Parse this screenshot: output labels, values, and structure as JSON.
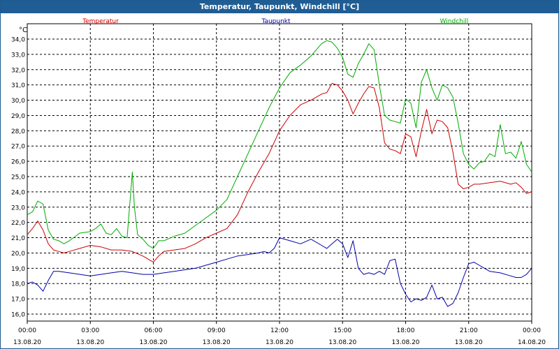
{
  "window": {
    "title": "Temperatur, Taupunkt, Windchill [°C]"
  },
  "colors": {
    "titlebar": "#1f5d94",
    "grid": "#000000"
  },
  "chart_data": {
    "type": "line",
    "title": "Temperatur, Taupunkt, Windchill [°C]",
    "ylabel": "°C",
    "xlabel": "",
    "ylim": [
      16.0,
      34.0
    ],
    "grid": true,
    "legend_position": "top",
    "y_ticks": [
      16.0,
      17.0,
      18.0,
      19.0,
      20.0,
      21.0,
      22.0,
      23.0,
      24.0,
      25.0,
      26.0,
      27.0,
      28.0,
      29.0,
      30.0,
      31.0,
      32.0,
      33.0,
      34.0
    ],
    "y_tick_labels": [
      "16,0",
      "17,0",
      "18,0",
      "19,0",
      "20,0",
      "21,0",
      "22,0",
      "23,0",
      "24,0",
      "25,0",
      "26,0",
      "27,0",
      "28,0",
      "29,0",
      "30,0",
      "31,0",
      "32,0",
      "33,0",
      "34,0"
    ],
    "x_ticks": [
      {
        "time": "00:00",
        "date": "13.08.20",
        "hour": 0
      },
      {
        "time": "03:00",
        "date": "13.08.20",
        "hour": 3
      },
      {
        "time": "06:00",
        "date": "13.08.20",
        "hour": 6
      },
      {
        "time": "09:00",
        "date": "13.08.20",
        "hour": 9
      },
      {
        "time": "12:00",
        "date": "13.08.20",
        "hour": 12
      },
      {
        "time": "15:00",
        "date": "13.08.20",
        "hour": 15
      },
      {
        "time": "18:00",
        "date": "13.08.20",
        "hour": 18
      },
      {
        "time": "21:00",
        "date": "13.08.20",
        "hour": 21
      },
      {
        "time": "00:00",
        "date": "14.08.20",
        "hour": 24
      }
    ],
    "series": [
      {
        "name": "Temperatur",
        "color": "#cc0000",
        "x": [
          0,
          0.25,
          0.5,
          0.75,
          1.0,
          1.25,
          1.5,
          1.75,
          2.0,
          2.5,
          3.0,
          3.5,
          4.0,
          4.5,
          5.0,
          5.5,
          5.75,
          6.0,
          6.25,
          6.5,
          7.0,
          7.5,
          8.0,
          8.5,
          9.0,
          9.5,
          10.0,
          10.5,
          11.0,
          11.5,
          12.0,
          12.5,
          13.0,
          13.5,
          14.0,
          14.25,
          14.5,
          14.75,
          15.0,
          15.25,
          15.5,
          15.75,
          16.0,
          16.25,
          16.5,
          16.75,
          17.0,
          17.25,
          17.5,
          17.75,
          18.0,
          18.25,
          18.5,
          18.75,
          19.0,
          19.25,
          19.5,
          19.75,
          20.0,
          20.25,
          20.5,
          20.75,
          21.0,
          21.25,
          21.5,
          22.0,
          22.5,
          23.0,
          23.25,
          23.5,
          23.75,
          24.0
        ],
        "y": [
          21.2,
          21.6,
          22.1,
          21.5,
          20.6,
          20.2,
          20.1,
          20.0,
          20.1,
          20.3,
          20.5,
          20.4,
          20.2,
          20.2,
          20.1,
          19.8,
          19.6,
          19.4,
          19.8,
          20.1,
          20.2,
          20.3,
          20.6,
          21.0,
          21.3,
          21.6,
          22.5,
          24.0,
          25.3,
          26.5,
          28.0,
          29.0,
          29.7,
          30.0,
          30.4,
          30.5,
          31.1,
          31.0,
          30.6,
          30.0,
          29.1,
          29.8,
          30.4,
          30.9,
          30.8,
          29.5,
          27.2,
          26.8,
          26.7,
          26.5,
          27.8,
          27.6,
          26.3,
          28.0,
          29.4,
          27.8,
          28.7,
          28.6,
          28.2,
          26.6,
          24.5,
          24.2,
          24.3,
          24.5,
          24.5,
          24.6,
          24.7,
          24.5,
          24.6,
          24.3,
          23.9,
          24.0
        ]
      },
      {
        "name": "Taupunkt",
        "color": "#0000aa",
        "x": [
          0,
          0.25,
          0.5,
          0.75,
          1.0,
          1.25,
          1.5,
          2.0,
          2.5,
          3.0,
          3.5,
          4.0,
          4.5,
          5.0,
          5.5,
          6.0,
          6.5,
          7.0,
          7.5,
          8.0,
          8.5,
          9.0,
          9.5,
          10.0,
          10.5,
          11.0,
          11.25,
          11.5,
          11.75,
          12.0,
          12.5,
          13.0,
          13.5,
          14.0,
          14.25,
          14.5,
          14.75,
          15.0,
          15.25,
          15.5,
          15.75,
          16.0,
          16.25,
          16.5,
          16.75,
          17.0,
          17.25,
          17.5,
          17.75,
          18.0,
          18.25,
          18.5,
          18.75,
          19.0,
          19.25,
          19.5,
          19.75,
          20.0,
          20.25,
          20.5,
          20.75,
          21.0,
          21.25,
          21.5,
          22.0,
          22.5,
          23.0,
          23.25,
          23.5,
          23.75,
          24.0
        ],
        "y": [
          18.0,
          18.1,
          17.9,
          17.5,
          18.2,
          18.8,
          18.8,
          18.7,
          18.6,
          18.5,
          18.6,
          18.7,
          18.8,
          18.7,
          18.6,
          18.6,
          18.7,
          18.8,
          18.9,
          19.0,
          19.2,
          19.4,
          19.6,
          19.8,
          19.9,
          20.0,
          20.1,
          20.0,
          20.3,
          21.0,
          20.8,
          20.6,
          20.9,
          20.5,
          20.3,
          20.6,
          20.9,
          20.6,
          19.7,
          20.8,
          19.0,
          18.6,
          18.7,
          18.6,
          18.8,
          18.6,
          19.5,
          19.6,
          18.0,
          17.3,
          16.8,
          17.0,
          16.9,
          17.1,
          17.9,
          17.0,
          17.1,
          16.5,
          16.7,
          17.4,
          18.4,
          19.3,
          19.4,
          19.2,
          18.8,
          18.7,
          18.5,
          18.4,
          18.4,
          18.6,
          19.0
        ]
      },
      {
        "name": "Windchill",
        "color": "#00aa00",
        "x": [
          0,
          0.25,
          0.5,
          0.75,
          1.0,
          1.25,
          1.5,
          1.75,
          2.0,
          2.5,
          3.0,
          3.25,
          3.5,
          3.75,
          4.0,
          4.25,
          4.5,
          4.75,
          5.0,
          5.1,
          5.25,
          5.5,
          5.75,
          6.0,
          6.25,
          6.5,
          7.0,
          7.5,
          8.0,
          8.5,
          9.0,
          9.5,
          10.0,
          10.5,
          11.0,
          11.5,
          12.0,
          12.5,
          13.0,
          13.5,
          14.0,
          14.25,
          14.5,
          14.75,
          15.0,
          15.25,
          15.5,
          15.75,
          16.0,
          16.25,
          16.5,
          16.75,
          17.0,
          17.25,
          17.5,
          17.75,
          18.0,
          18.25,
          18.5,
          18.75,
          19.0,
          19.25,
          19.5,
          19.75,
          20.0,
          20.25,
          20.5,
          20.75,
          21.0,
          21.25,
          21.5,
          21.75,
          22.0,
          22.25,
          22.5,
          22.75,
          23.0,
          23.25,
          23.5,
          23.75,
          24.0
        ],
        "y": [
          22.5,
          22.7,
          23.4,
          23.2,
          21.5,
          20.9,
          20.8,
          20.6,
          20.8,
          21.3,
          21.4,
          21.6,
          21.9,
          21.3,
          21.2,
          21.6,
          21.1,
          21.0,
          25.3,
          23.0,
          21.2,
          20.9,
          20.5,
          20.3,
          20.8,
          20.8,
          21.1,
          21.3,
          21.8,
          22.3,
          22.8,
          23.5,
          25.0,
          26.5,
          28.0,
          29.5,
          30.8,
          31.8,
          32.3,
          32.9,
          33.7,
          33.9,
          33.8,
          33.4,
          32.8,
          31.7,
          31.5,
          32.4,
          33.0,
          33.7,
          33.3,
          31.0,
          29.0,
          28.7,
          28.6,
          28.5,
          30.1,
          29.8,
          28.2,
          31.2,
          32.0,
          30.8,
          30.0,
          31.0,
          30.8,
          30.2,
          28.5,
          26.5,
          25.8,
          25.5,
          25.9,
          26.0,
          26.5,
          26.3,
          28.4,
          26.5,
          26.6,
          26.2,
          27.3,
          25.8,
          25.3
        ]
      }
    ]
  }
}
